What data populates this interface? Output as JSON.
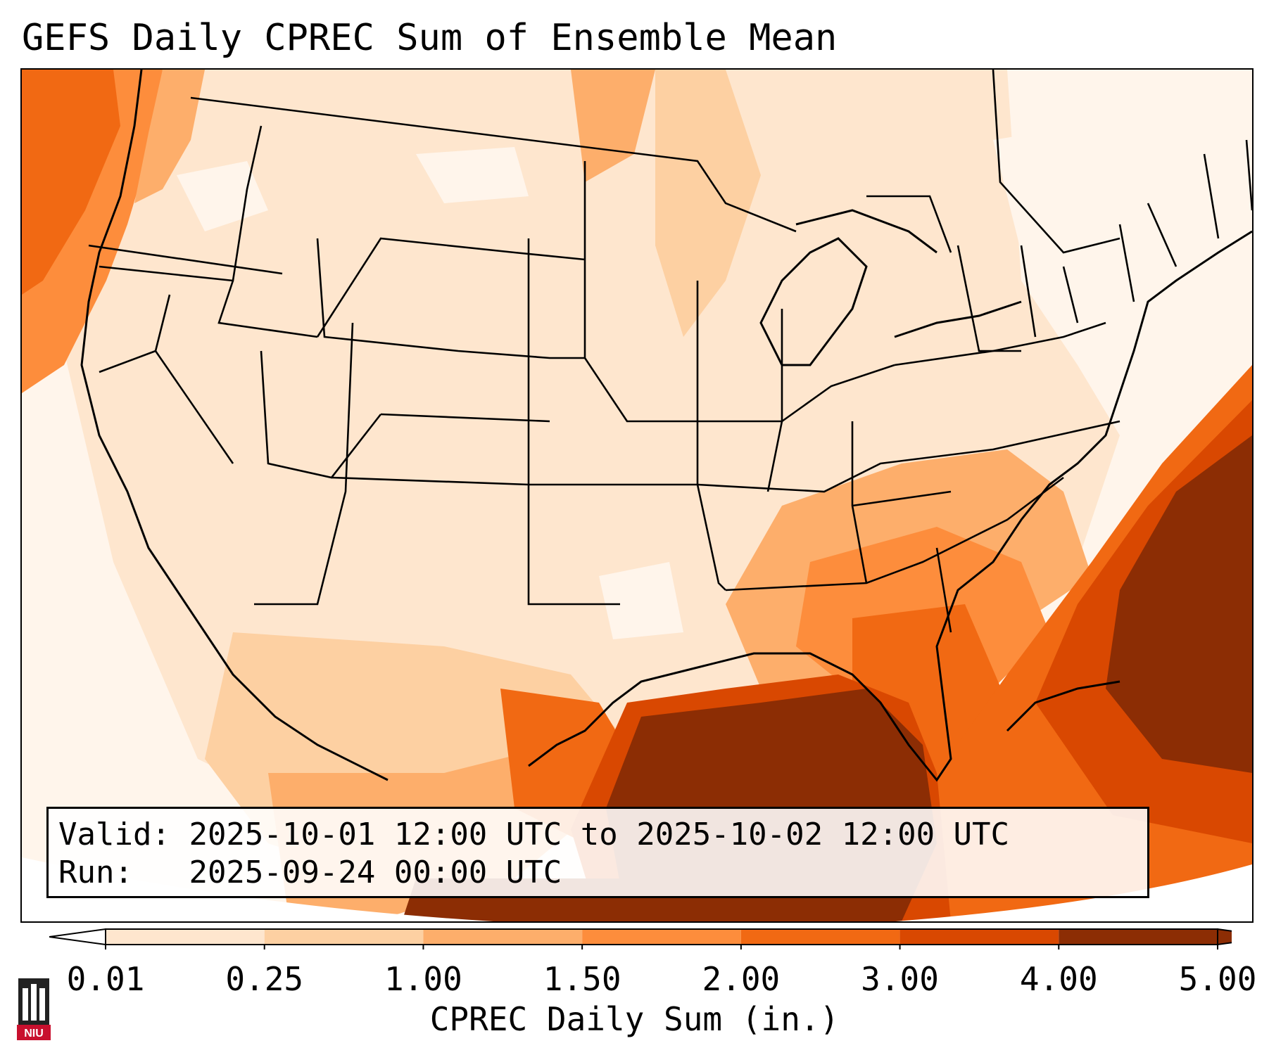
{
  "title": "GEFS Daily CPREC Sum of Ensemble Mean",
  "info": {
    "valid_label": "Valid:",
    "valid_value": "2025-10-01 12:00 UTC to 2025-10-02 12:00 UTC",
    "run_label": "Run:",
    "run_value": "2025-09-24 00:00 UTC"
  },
  "colorbar": {
    "ticks": [
      "0.01",
      "0.25",
      "1.00",
      "1.50",
      "2.00",
      "3.00",
      "4.00",
      "5.00"
    ],
    "colors": [
      "#fff5eb",
      "#fee6ce",
      "#fdd0a2",
      "#fdae6b",
      "#fd8d3c",
      "#f16913",
      "#d94801",
      "#8c2d04"
    ],
    "label": "CPREC Daily Sum (in.)"
  },
  "logo": {
    "icon": "niu-logo-icon",
    "text": "NIU"
  }
}
